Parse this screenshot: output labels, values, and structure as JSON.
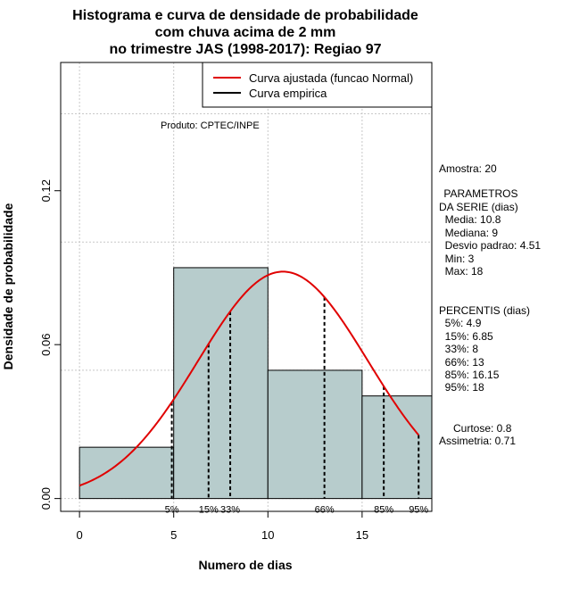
{
  "chart_data": {
    "type": "histogram",
    "title": [
      "Histograma e curva de densidade de probabilidade",
      "com chuva acima de 2 mm",
      "no trimestre JAS (1998-2017): Regiao 97"
    ],
    "xlabel": "Numero de dias",
    "ylabel": "Densidade de probabilidade",
    "xlim": [
      -1,
      18.7
    ],
    "ylim": [
      -0.005,
      0.17
    ],
    "x_ticks": [
      0,
      5,
      10,
      15
    ],
    "y_ticks": [
      0.0,
      0.06,
      0.12
    ],
    "y_tick_labels": [
      "0.00",
      "0.06",
      "0.12"
    ],
    "grid": true,
    "grid_x": [
      0,
      5,
      10,
      15
    ],
    "grid_y": [
      0.0,
      0.05,
      0.1,
      0.15
    ],
    "bar_color": "#b7cccc",
    "bins": [
      {
        "x0": 0,
        "x1": 5,
        "density": 0.02
      },
      {
        "x0": 5,
        "x1": 10,
        "density": 0.09
      },
      {
        "x0": 10,
        "x1": 15,
        "density": 0.05
      },
      {
        "x0": 15,
        "x1": 18.7,
        "density": 0.04
      }
    ],
    "normal_fit": {
      "mean": 10.8,
      "sd": 4.51,
      "x_from": 0,
      "x_to": 18,
      "color": "#e00000"
    },
    "percentiles": [
      {
        "label": "5%",
        "value": 4.9
      },
      {
        "label": "15%",
        "value": 6.85
      },
      {
        "label": "33%",
        "value": 8
      },
      {
        "label": "66%",
        "value": 13
      },
      {
        "label": "85%",
        "value": 16.15
      },
      {
        "label": "95%",
        "value": 18
      }
    ],
    "legend": {
      "position": "top-right",
      "entries": [
        {
          "label": "Curva ajustada (funcao Normal)",
          "color": "#e00000"
        },
        {
          "label": "Curva empirica",
          "color": "#000000"
        }
      ]
    },
    "annotation": "Produto: CPTEC/INPE",
    "side_text": [
      "Amostra: 20",
      " PARAMETROS",
      "DA SERIE (dias)",
      "  Media: 10.8",
      "  Mediana: 9",
      "  Desvio padrao: 4.51",
      "  Min: 3",
      "  Max: 18",
      "PERCENTIS (dias)",
      "  5%: 4.9",
      "  15%: 6.85",
      "  33%: 8",
      "  66%: 13",
      "  85%: 16.15",
      "  95%: 18",
      "Curtose: 0.8",
      "Assimetria: 0.71"
    ]
  }
}
